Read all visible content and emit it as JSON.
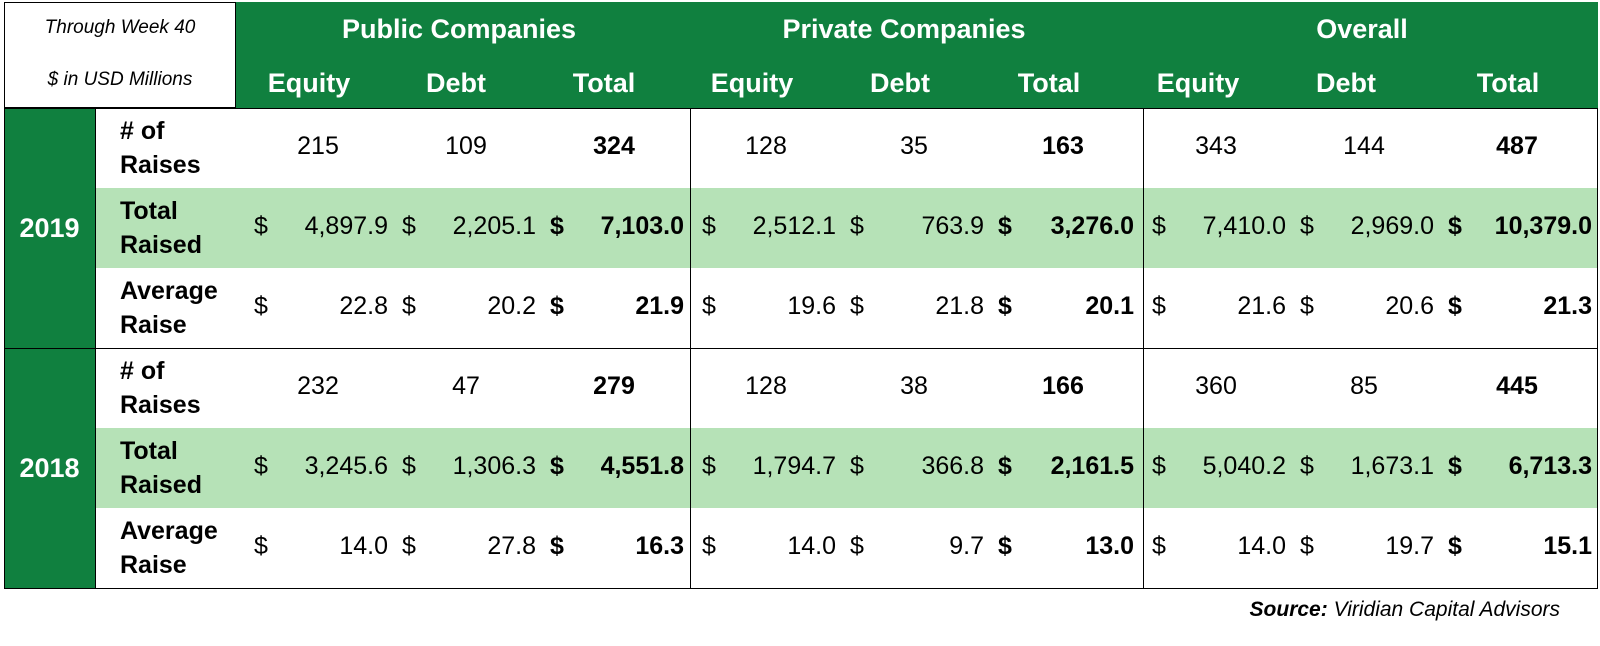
{
  "header": {
    "note_line1": "Through Week  40",
    "note_line2": "$ in USD Millions",
    "groups": [
      "Public Companies",
      "Private Companies",
      "Overall"
    ],
    "columns": [
      "Equity",
      "Debt",
      "Total",
      "Equity",
      "Debt",
      "Total",
      "Equity",
      "Debt",
      "Total"
    ]
  },
  "years": [
    {
      "year": "2019",
      "rows": [
        {
          "label": "# of\nRaises",
          "kind": "count",
          "values": [
            "215",
            "109",
            "324",
            "128",
            "35",
            "163",
            "343",
            "144",
            "487"
          ]
        },
        {
          "label": "Total\nRaised",
          "kind": "money",
          "values": [
            "4,897.9",
            "2,205.1",
            "7,103.0",
            "2,512.1",
            "763.9",
            "3,276.0",
            "7,410.0",
            "2,969.0",
            "10,379.0"
          ]
        },
        {
          "label": "Average\nRaise",
          "kind": "money",
          "values": [
            "22.8",
            "20.2",
            "21.9",
            "19.6",
            "21.8",
            "20.1",
            "21.6",
            "20.6",
            "21.3"
          ]
        }
      ]
    },
    {
      "year": "2018",
      "rows": [
        {
          "label": "# of\nRaises",
          "kind": "count",
          "values": [
            "232",
            "47",
            "279",
            "128",
            "38",
            "166",
            "360",
            "85",
            "445"
          ]
        },
        {
          "label": "Total\nRaised",
          "kind": "money",
          "values": [
            "3,245.6",
            "1,306.3",
            "4,551.8",
            "1,794.7",
            "366.8",
            "2,161.5",
            "5,040.2",
            "1,673.1",
            "6,713.3"
          ]
        },
        {
          "label": "Average\nRaise",
          "kind": "money",
          "values": [
            "14.0",
            "27.8",
            "16.3",
            "14.0",
            "9.7",
            "13.0",
            "14.0",
            "19.7",
            "15.1"
          ]
        }
      ]
    }
  ],
  "currency_symbol": "$",
  "source": {
    "label": "Source:",
    "text": "Viridian Capital Advisors"
  },
  "colors": {
    "header_green": "#10803f",
    "row_shade": "#b6e2b7"
  }
}
